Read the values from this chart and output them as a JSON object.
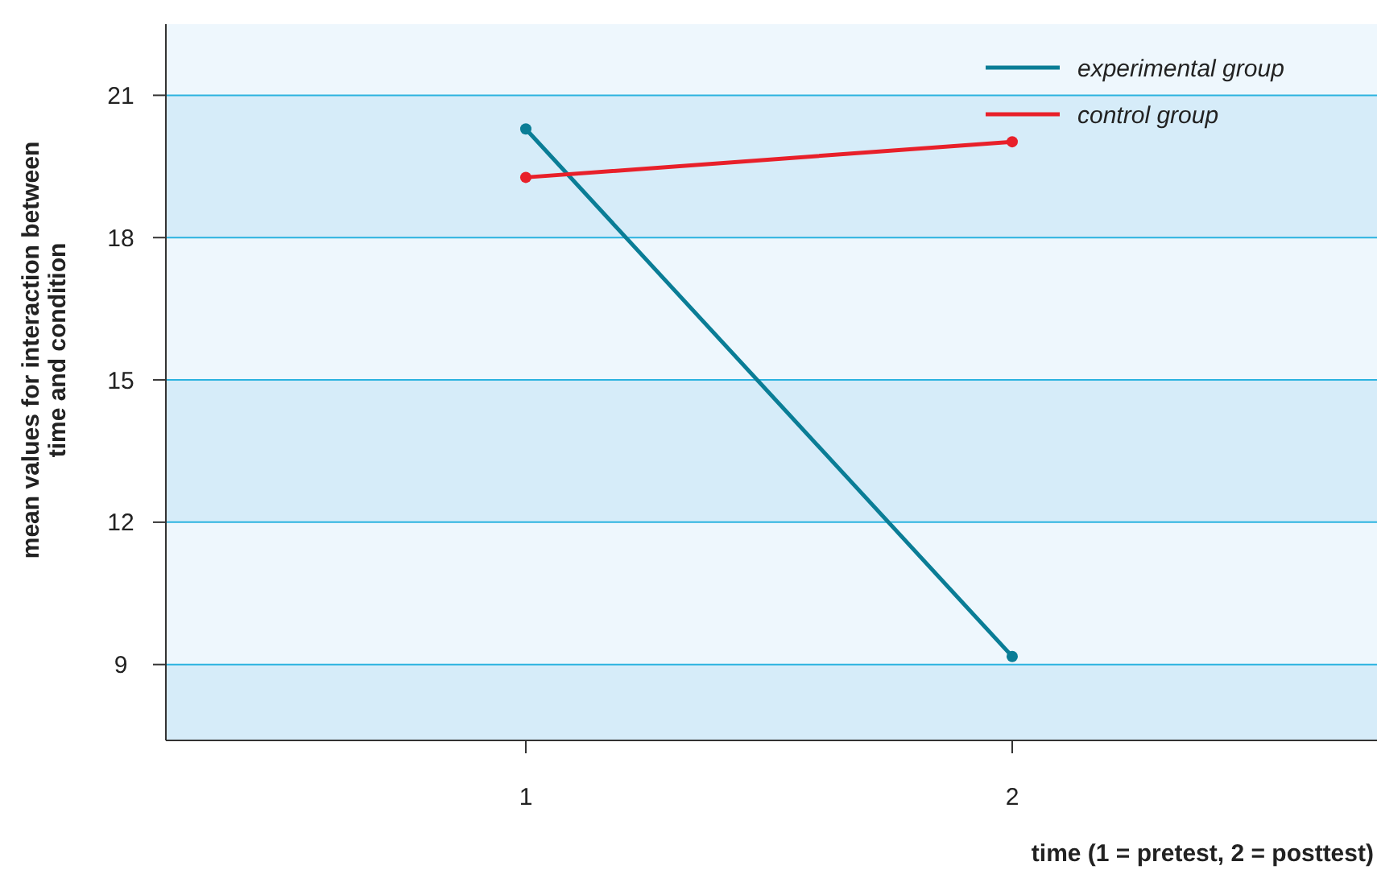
{
  "chart_data": {
    "type": "line",
    "xlabel": "time (1 = pretest, 2 = posttest)",
    "ylabel": "mean values for interaction between time and condition",
    "x": [
      1,
      2
    ],
    "xlim": [
      0.26,
      2.75
    ],
    "xticks": [
      1,
      2
    ],
    "ylim": [
      7.4,
      22.5
    ],
    "yticks": [
      9,
      12,
      15,
      18,
      21
    ],
    "series": [
      {
        "name": "experimental group",
        "color": "#0a7d96",
        "values": [
          20.29,
          9.17
        ]
      },
      {
        "name": "control group",
        "color": "#e8202a",
        "values": [
          19.27,
          20.02
        ]
      }
    ],
    "grid": "y",
    "legend": "top right",
    "marker": "circle",
    "line_style": "solid"
  }
}
